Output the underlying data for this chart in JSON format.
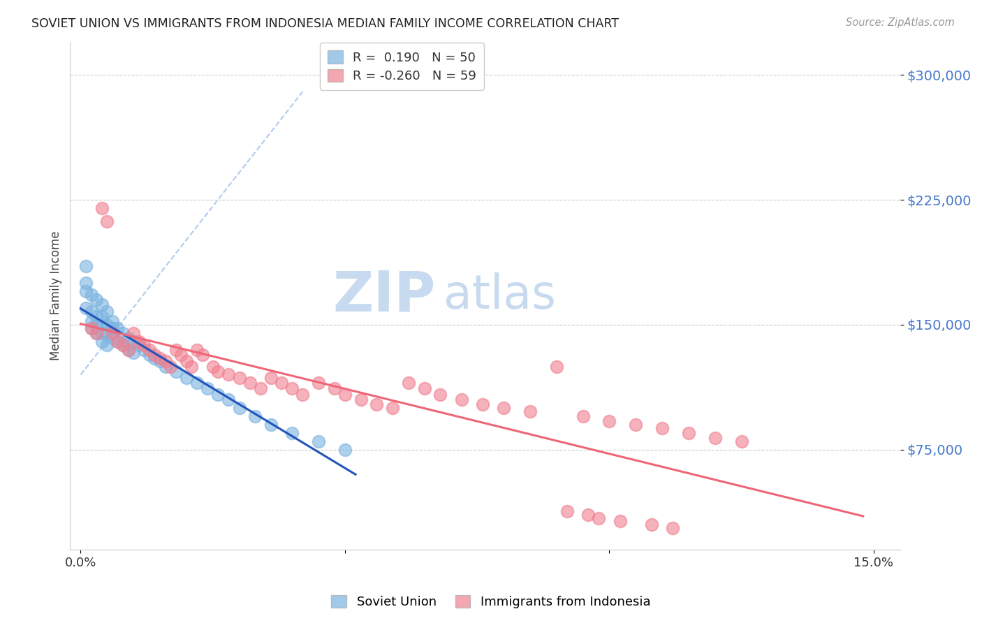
{
  "title": "SOVIET UNION VS IMMIGRANTS FROM INDONESIA MEDIAN FAMILY INCOME CORRELATION CHART",
  "source": "Source: ZipAtlas.com",
  "ylabel": "Median Family Income",
  "yticks": [
    75000,
    150000,
    225000,
    300000
  ],
  "ytick_labels": [
    "$75,000",
    "$150,000",
    "$225,000",
    "$300,000"
  ],
  "ymin": 15000,
  "ymax": 320000,
  "xmin": -0.002,
  "xmax": 0.155,
  "blue_color": "#7ab3e0",
  "pink_color": "#f08090",
  "trendline_blue_color": "#2255bb",
  "trendline_pink_color": "#ee6677",
  "trendline_dashed_color": "#b0ccee",
  "watermark_zip": "ZIP",
  "watermark_atlas": "atlas",
  "watermark_color": "#c8daef",
  "soviet_x": [
    0.001,
    0.001,
    0.001,
    0.001,
    0.002,
    0.002,
    0.002,
    0.002,
    0.003,
    0.003,
    0.003,
    0.003,
    0.004,
    0.004,
    0.004,
    0.004,
    0.004,
    0.005,
    0.005,
    0.005,
    0.005,
    0.006,
    0.006,
    0.006,
    0.007,
    0.007,
    0.008,
    0.008,
    0.009,
    0.009,
    0.01,
    0.01,
    0.011,
    0.012,
    0.013,
    0.014,
    0.015,
    0.016,
    0.018,
    0.02,
    0.022,
    0.024,
    0.026,
    0.028,
    0.03,
    0.033,
    0.036,
    0.04,
    0.045,
    0.05
  ],
  "soviet_y": [
    185000,
    175000,
    170000,
    160000,
    168000,
    158000,
    152000,
    148000,
    165000,
    155000,
    150000,
    145000,
    162000,
    155000,
    150000,
    145000,
    140000,
    158000,
    150000,
    145000,
    138000,
    152000,
    148000,
    142000,
    148000,
    140000,
    145000,
    138000,
    142000,
    135000,
    140000,
    133000,
    138000,
    135000,
    132000,
    130000,
    128000,
    125000,
    122000,
    118000,
    115000,
    112000,
    108000,
    105000,
    100000,
    95000,
    90000,
    85000,
    80000,
    75000
  ],
  "indonesia_x": [
    0.002,
    0.003,
    0.004,
    0.005,
    0.006,
    0.007,
    0.008,
    0.009,
    0.01,
    0.011,
    0.012,
    0.013,
    0.014,
    0.015,
    0.016,
    0.017,
    0.018,
    0.019,
    0.02,
    0.021,
    0.022,
    0.023,
    0.025,
    0.026,
    0.028,
    0.03,
    0.032,
    0.034,
    0.036,
    0.038,
    0.04,
    0.042,
    0.045,
    0.048,
    0.05,
    0.053,
    0.056,
    0.059,
    0.062,
    0.065,
    0.068,
    0.072,
    0.076,
    0.08,
    0.085,
    0.09,
    0.095,
    0.1,
    0.105,
    0.11,
    0.115,
    0.12,
    0.125,
    0.092,
    0.096,
    0.098,
    0.102,
    0.108,
    0.112
  ],
  "indonesia_y": [
    148000,
    145000,
    220000,
    212000,
    145000,
    140000,
    138000,
    135000,
    145000,
    140000,
    138000,
    135000,
    132000,
    130000,
    128000,
    125000,
    135000,
    132000,
    128000,
    125000,
    135000,
    132000,
    125000,
    122000,
    120000,
    118000,
    115000,
    112000,
    118000,
    115000,
    112000,
    108000,
    115000,
    112000,
    108000,
    105000,
    102000,
    100000,
    115000,
    112000,
    108000,
    105000,
    102000,
    100000,
    98000,
    125000,
    95000,
    92000,
    90000,
    88000,
    85000,
    82000,
    80000,
    38000,
    36000,
    34000,
    32000,
    30000,
    28000
  ]
}
